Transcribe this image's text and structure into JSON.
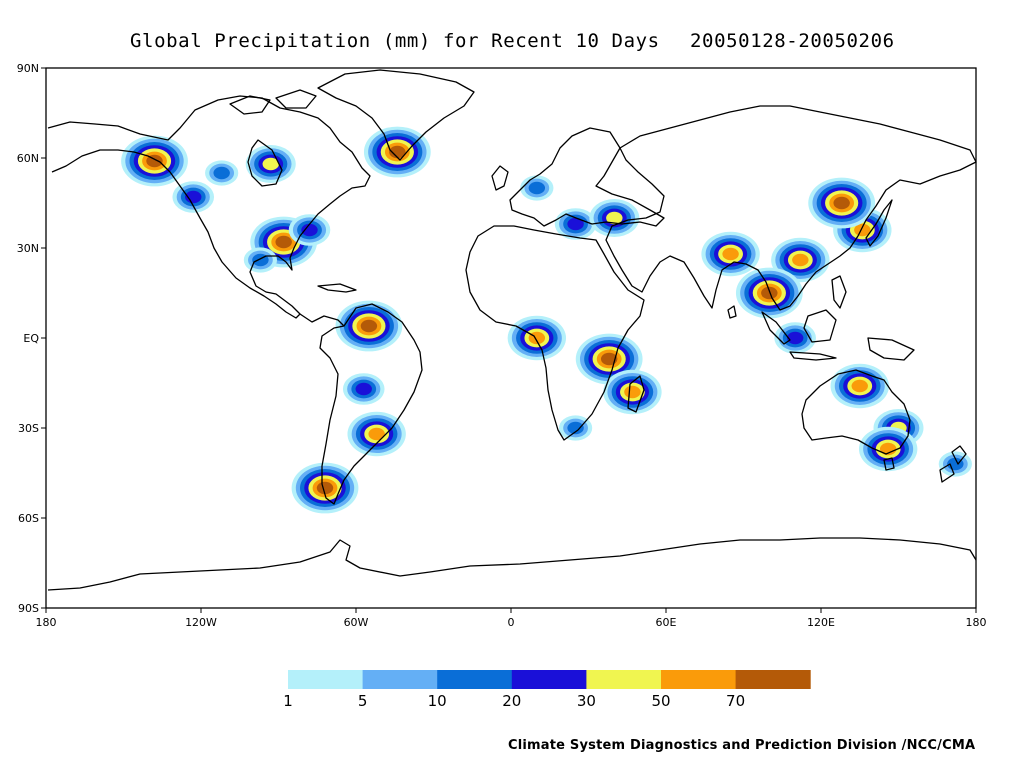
{
  "title": {
    "main": "Global Precipitation (mm) for Recent 10 Days",
    "dates": "20050128-20050206"
  },
  "axes": {
    "lon_ticks": [
      "180",
      "120W",
      "60W",
      "0",
      "60E",
      "120E",
      "180"
    ],
    "lat_ticks": [
      "90N",
      "60N",
      "30N",
      "EQ",
      "30S",
      "60S",
      "90S"
    ],
    "lon_range": [
      -180,
      180
    ],
    "lat_range": [
      -90,
      90
    ]
  },
  "legend": {
    "colors": [
      "#b4f0fa",
      "#64aff5",
      "#0a6ed7",
      "#1a10d8",
      "#f0f550",
      "#fa9b0a",
      "#b45a08"
    ],
    "labels": [
      "1",
      "5",
      "10",
      "20",
      "30",
      "50",
      "70"
    ]
  },
  "credit": "Climate System Diagnostics and Prediction Division /NCC/CMA",
  "precip_regions": [
    {
      "name": "alaska-gulf",
      "lon": -138,
      "lat": 59,
      "level": 6
    },
    {
      "name": "pacific-nw",
      "lon": -123,
      "lat": 47,
      "level": 3
    },
    {
      "name": "canada-west",
      "lon": -112,
      "lat": 55,
      "level": 2
    },
    {
      "name": "hudson",
      "lon": -93,
      "lat": 58,
      "level": 4
    },
    {
      "name": "us-southeast",
      "lon": -88,
      "lat": 32,
      "level": 6
    },
    {
      "name": "us-east",
      "lon": -78,
      "lat": 36,
      "level": 3
    },
    {
      "name": "gulf-mexico",
      "lon": -97,
      "lat": 26,
      "level": 2
    },
    {
      "name": "greenland-south",
      "lon": -44,
      "lat": 62,
      "level": 6
    },
    {
      "name": "guiana",
      "lon": -55,
      "lat": 4,
      "level": 6
    },
    {
      "name": "brazil-central",
      "lon": -57,
      "lat": -17,
      "level": 3
    },
    {
      "name": "brazil-south",
      "lon": -52,
      "lat": -32,
      "level": 5
    },
    {
      "name": "patagonia",
      "lon": -72,
      "lat": -50,
      "level": 6
    },
    {
      "name": "europe",
      "lon": 10,
      "lat": 50,
      "level": 2
    },
    {
      "name": "mediterranean",
      "lon": 25,
      "lat": 38,
      "level": 3
    },
    {
      "name": "turkey",
      "lon": 40,
      "lat": 40,
      "level": 4
    },
    {
      "name": "west-africa",
      "lon": 10,
      "lat": 0,
      "level": 5
    },
    {
      "name": "east-africa",
      "lon": 38,
      "lat": -7,
      "level": 6
    },
    {
      "name": "madagascar",
      "lon": 47,
      "lat": -18,
      "level": 5
    },
    {
      "name": "south-africa",
      "lon": 25,
      "lat": -30,
      "level": 2
    },
    {
      "name": "himalaya",
      "lon": 85,
      "lat": 28,
      "level": 5
    },
    {
      "name": "south-china",
      "lon": 112,
      "lat": 26,
      "level": 5
    },
    {
      "name": "japan",
      "lon": 136,
      "lat": 36,
      "level": 5
    },
    {
      "name": "korea-manchuria",
      "lon": 128,
      "lat": 45,
      "level": 6
    },
    {
      "name": "indochina",
      "lon": 100,
      "lat": 15,
      "level": 6
    },
    {
      "name": "indonesia",
      "lon": 110,
      "lat": 0,
      "level": 3
    },
    {
      "name": "australia-north",
      "lon": 135,
      "lat": -16,
      "level": 5
    },
    {
      "name": "australia-east",
      "lon": 150,
      "lat": -30,
      "level": 4
    },
    {
      "name": "australia-southeast",
      "lon": 146,
      "lat": -37,
      "level": 5
    },
    {
      "name": "new-zealand",
      "lon": 172,
      "lat": -42,
      "level": 2
    }
  ]
}
